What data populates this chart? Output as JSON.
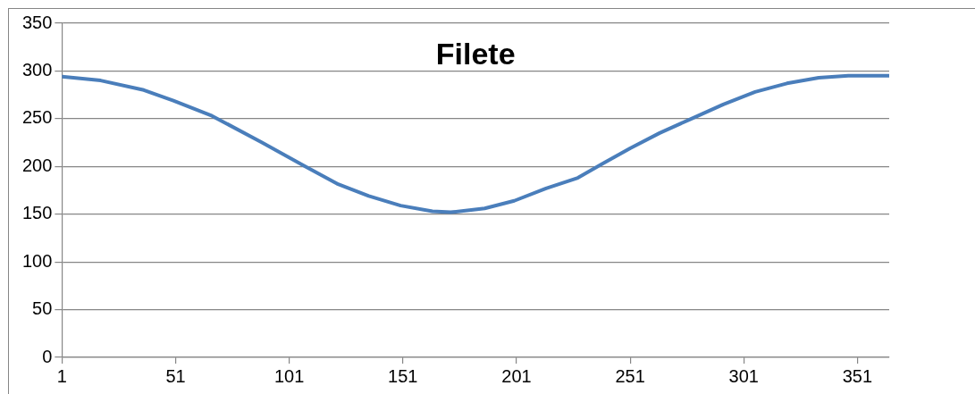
{
  "chart_data": {
    "type": "line",
    "title": "Filete",
    "x": [
      1,
      18,
      37,
      50,
      67,
      89,
      108,
      122,
      136,
      150,
      164,
      172,
      187,
      200,
      214,
      228,
      239,
      251,
      264,
      278,
      292,
      306,
      320,
      334,
      347,
      365
    ],
    "series": [
      {
        "color": "#4a7ebb",
        "values": [
          294,
          290,
          280,
          269,
          253,
          225,
          200,
          182,
          169,
          159,
          153,
          152,
          156,
          164,
          177,
          188,
          203,
          219,
          235,
          250,
          265,
          278,
          287,
          293,
          295,
          295
        ]
      }
    ],
    "xlim": [
      1,
      365
    ],
    "xticks": [
      1,
      51,
      101,
      151,
      201,
      251,
      301,
      351
    ],
    "ylim": [
      0,
      350
    ],
    "yticks": [
      0,
      50,
      100,
      150,
      200,
      250,
      300,
      350
    ],
    "grid": "y",
    "legend": false,
    "marker": "none",
    "line_style": "solid"
  }
}
